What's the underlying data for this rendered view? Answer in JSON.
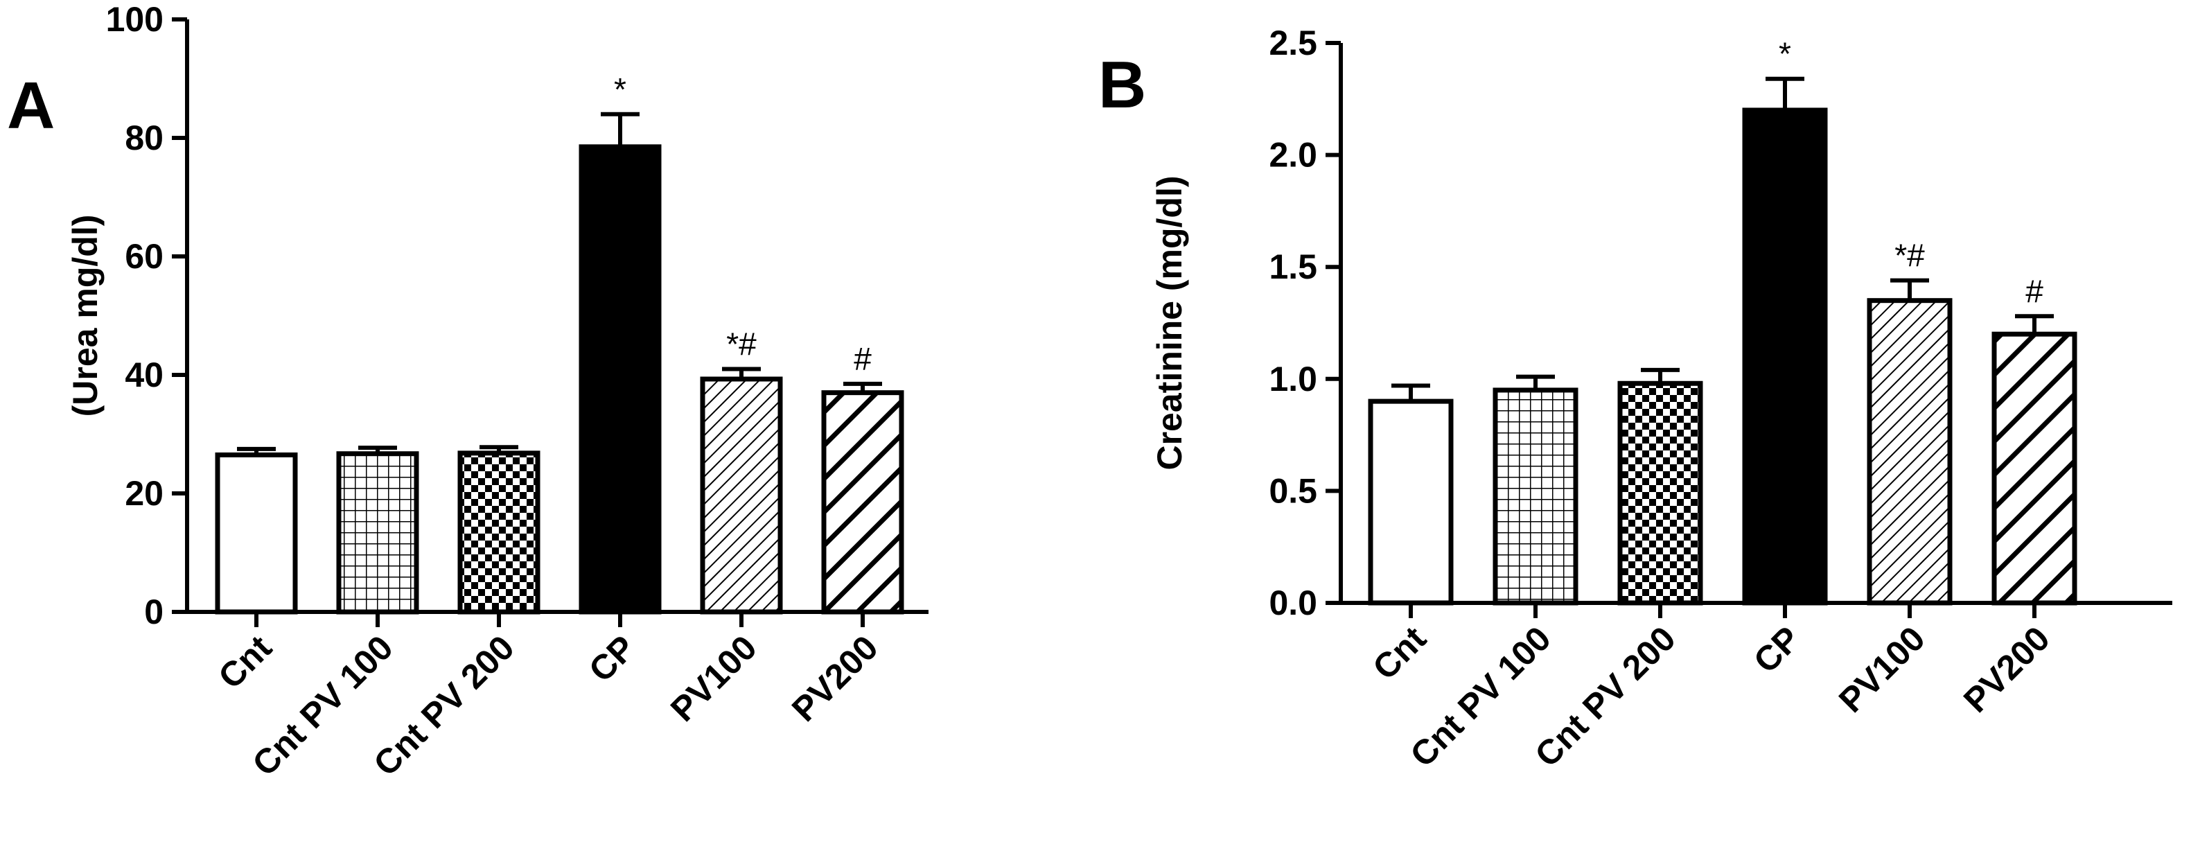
{
  "panels": [
    {
      "letter": "A"
    },
    {
      "letter": "B"
    }
  ],
  "colors": {
    "ink": "#000000",
    "background": "#ffffff"
  },
  "chart_data": [
    {
      "type": "bar",
      "panel": "A",
      "title": "",
      "xlabel": "",
      "ylabel": "(Urea mg/dl)",
      "ylim": [
        0,
        100
      ],
      "yticks": [
        0,
        20,
        40,
        60,
        80,
        100
      ],
      "ytick_labels": [
        "0",
        "20",
        "40",
        "60",
        "80",
        "100"
      ],
      "categories": [
        "Cnt",
        "Cnt PV 100",
        "Cnt PV 200",
        "CP",
        "PV100",
        "PV200"
      ],
      "values": [
        26.5,
        26.7,
        26.8,
        78.5,
        39.3,
        37.0
      ],
      "errors": [
        1.0,
        1.0,
        1.0,
        5.5,
        1.7,
        1.5
      ],
      "patterns": [
        "open",
        "grid",
        "checker",
        "solid",
        "diag-fine",
        "diag-wide"
      ],
      "annotations": [
        "",
        "",
        "",
        "*",
        "*#",
        "#"
      ],
      "grid": false,
      "legend": "none"
    },
    {
      "type": "bar",
      "panel": "B",
      "title": "",
      "xlabel": "",
      "ylabel": "Creatinine (mg/dl)",
      "ylim": [
        0,
        2.5
      ],
      "yticks": [
        0,
        0.5,
        1.0,
        1.5,
        2.0,
        2.5
      ],
      "ytick_labels": [
        "0.0",
        "0.5",
        "1.0",
        "1.5",
        "2.0",
        "2.5"
      ],
      "categories": [
        "Cnt",
        "Cnt PV 100",
        "Cnt PV 200",
        "CP",
        "PV100",
        "PV200"
      ],
      "values": [
        0.9,
        0.95,
        0.98,
        2.2,
        1.35,
        1.2
      ],
      "errors": [
        0.07,
        0.06,
        0.06,
        0.14,
        0.09,
        0.08
      ],
      "patterns": [
        "open",
        "grid",
        "checker",
        "solid",
        "diag-fine",
        "diag-wide"
      ],
      "annotations": [
        "",
        "",
        "",
        "*",
        "*#",
        "#"
      ],
      "grid": false,
      "legend": "none"
    }
  ]
}
